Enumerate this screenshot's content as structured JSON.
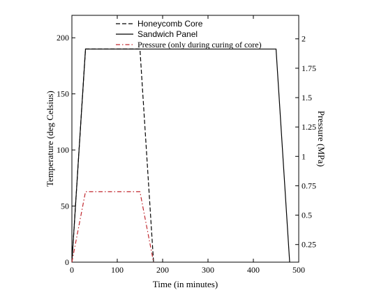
{
  "chart_data": {
    "type": "line",
    "title": "",
    "xlabel": "Time (in minutes)",
    "ylabel": "Temperature (deg Celsius)",
    "y2label": "Pressure (MPa)",
    "xlim": [
      0,
      500
    ],
    "ylim": [
      0,
      220
    ],
    "y2lim": [
      0.1,
      2.2
    ],
    "xticks": [
      0,
      100,
      200,
      300,
      400,
      500
    ],
    "yticks": [
      0,
      50,
      100,
      150,
      200
    ],
    "y2ticks": [
      0.25,
      0.5,
      0.75,
      1,
      1.25,
      1.5,
      1.75,
      2
    ],
    "y2ticklabels": [
      "0.25",
      "0.5",
      "0.75",
      "1",
      "1.25",
      "1.5",
      "1.75",
      "2"
    ],
    "grid": false,
    "legend_position": "top-center",
    "series": [
      {
        "name": "Honeycomb Core",
        "axis": "left",
        "style": "dashed",
        "color": "#000000",
        "x": [
          0,
          30,
          150,
          180
        ],
        "y": [
          0,
          190,
          190,
          0
        ]
      },
      {
        "name": "Sandwich Panel",
        "axis": "left",
        "style": "solid",
        "color": "#000000",
        "x": [
          0,
          30,
          450,
          480
        ],
        "y": [
          0,
          190,
          190,
          0
        ]
      },
      {
        "name": "Pressure (only during curing of core)",
        "axis": "right",
        "style": "dashdot",
        "color": "#c0262d",
        "x": [
          0,
          30,
          150,
          180
        ],
        "y": [
          0.1,
          0.7,
          0.7,
          0.1
        ]
      }
    ]
  }
}
